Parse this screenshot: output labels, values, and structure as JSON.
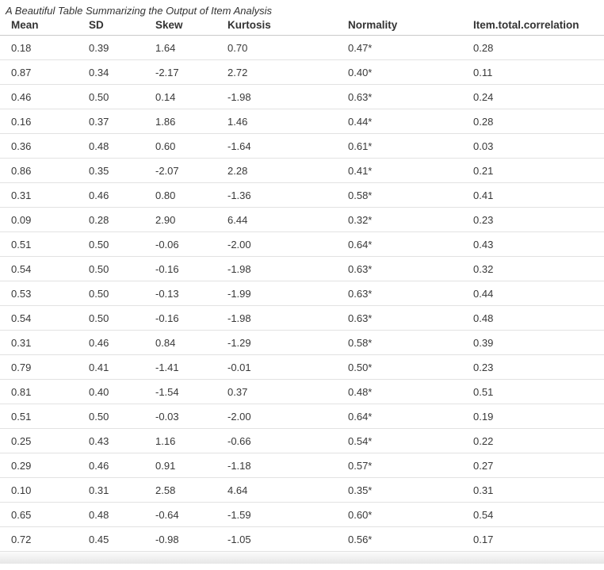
{
  "title": "A Beautiful Table Summarizing the Output of Item Analysis",
  "table": {
    "columns": [
      "Mean",
      "SD",
      "Skew",
      "Kurtosis",
      "Normality",
      "Item.total.correlation"
    ],
    "rows": [
      [
        "0.18",
        "0.39",
        "1.64",
        "0.70",
        "0.47*",
        "0.28"
      ],
      [
        "0.87",
        "0.34",
        "-2.17",
        "2.72",
        "0.40*",
        "0.11"
      ],
      [
        "0.46",
        "0.50",
        "0.14",
        "-1.98",
        "0.63*",
        "0.24"
      ],
      [
        "0.16",
        "0.37",
        "1.86",
        "1.46",
        "0.44*",
        "0.28"
      ],
      [
        "0.36",
        "0.48",
        "0.60",
        "-1.64",
        "0.61*",
        "0.03"
      ],
      [
        "0.86",
        "0.35",
        "-2.07",
        "2.28",
        "0.41*",
        "0.21"
      ],
      [
        "0.31",
        "0.46",
        "0.80",
        "-1.36",
        "0.58*",
        "0.41"
      ],
      [
        "0.09",
        "0.28",
        "2.90",
        "6.44",
        "0.32*",
        "0.23"
      ],
      [
        "0.51",
        "0.50",
        "-0.06",
        "-2.00",
        "0.64*",
        "0.43"
      ],
      [
        "0.54",
        "0.50",
        "-0.16",
        "-1.98",
        "0.63*",
        "0.32"
      ],
      [
        "0.53",
        "0.50",
        "-0.13",
        "-1.99",
        "0.63*",
        "0.44"
      ],
      [
        "0.54",
        "0.50",
        "-0.16",
        "-1.98",
        "0.63*",
        "0.48"
      ],
      [
        "0.31",
        "0.46",
        "0.84",
        "-1.29",
        "0.58*",
        "0.39"
      ],
      [
        "0.79",
        "0.41",
        "-1.41",
        "-0.01",
        "0.50*",
        "0.23"
      ],
      [
        "0.81",
        "0.40",
        "-1.54",
        "0.37",
        "0.48*",
        "0.51"
      ],
      [
        "0.51",
        "0.50",
        "-0.03",
        "-2.00",
        "0.64*",
        "0.19"
      ],
      [
        "0.25",
        "0.43",
        "1.16",
        "-0.66",
        "0.54*",
        "0.22"
      ],
      [
        "0.29",
        "0.46",
        "0.91",
        "-1.18",
        "0.57*",
        "0.27"
      ],
      [
        "0.10",
        "0.31",
        "2.58",
        "4.64",
        "0.35*",
        "0.31"
      ],
      [
        "0.65",
        "0.48",
        "-0.64",
        "-1.59",
        "0.60*",
        "0.54"
      ],
      [
        "0.72",
        "0.45",
        "-0.98",
        "-1.05",
        "0.56*",
        "0.17"
      ]
    ]
  },
  "colors": {
    "background": "#ffffff",
    "body_text": "#383838",
    "header_text": "#333333",
    "header_border": "#c9c9c9",
    "row_border": "#e2e2e2",
    "footer_gradient_top": "#fbfbfb",
    "footer_gradient_bottom": "#e6e6e6"
  }
}
